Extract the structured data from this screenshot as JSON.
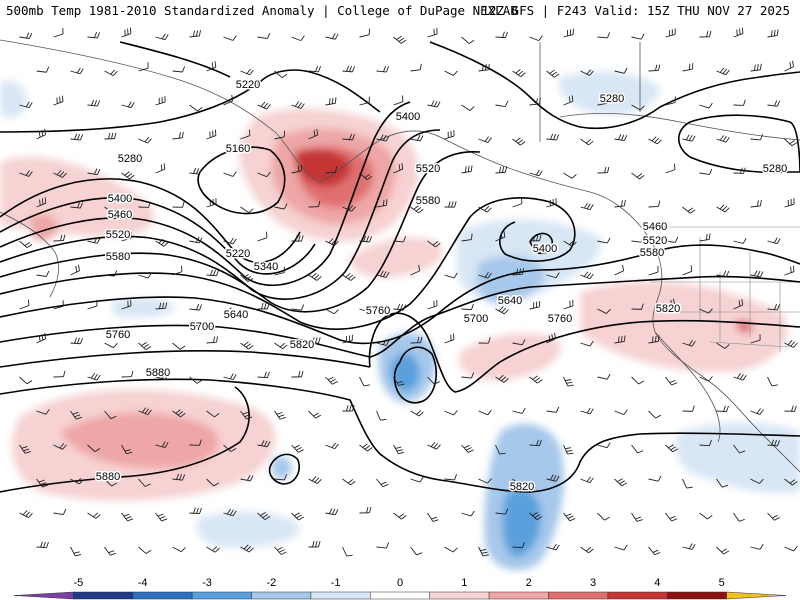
{
  "header": {
    "left_title": "500mb Temp 1981-2010 Standardized Anomaly | College of DuPage NEXLAB",
    "right_title": "12Z GFS | F243 Valid: 15Z THU NOV 27 2025"
  },
  "colors": {
    "contour": "#000000",
    "coast": "#555555",
    "border": "#888888",
    "scale": [
      "#7b3fa7",
      "#1f3b86",
      "#2f6fbf",
      "#5aa0dc",
      "#a6c8ea",
      "#d8e6f5",
      "#ffffff",
      "#f6d2d2",
      "#eea6a6",
      "#e07070",
      "#c63434",
      "#8e1111",
      "#f0c020"
    ]
  },
  "map": {
    "type": "height-contour-anomaly-map",
    "field": "500mb height contours (dam x10) with standardized temperature anomaly shading and wind barbs",
    "contours": [
      {
        "value": "5160",
        "labels": [
          "5160"
        ]
      },
      {
        "value": "5220",
        "labels": [
          "5220",
          "5220"
        ]
      },
      {
        "value": "5280",
        "labels": [
          "5280",
          "5280",
          "5280"
        ]
      },
      {
        "value": "5340",
        "labels": [
          "5340"
        ]
      },
      {
        "value": "5400",
        "labels": [
          "5400",
          "5400",
          "5400"
        ]
      },
      {
        "value": "5460",
        "labels": [
          "5460",
          "5460"
        ]
      },
      {
        "value": "5520",
        "labels": [
          "5520",
          "5520",
          "5520"
        ]
      },
      {
        "value": "5580",
        "labels": [
          "5580",
          "5580",
          "5580"
        ]
      },
      {
        "value": "5640",
        "labels": [
          "5640",
          "5640"
        ]
      },
      {
        "value": "5700",
        "labels": [
          "5700",
          "5700"
        ]
      },
      {
        "value": "5760",
        "labels": [
          "5760",
          "5760",
          "5760"
        ]
      },
      {
        "value": "5820",
        "labels": [
          "5820",
          "5820",
          "5820"
        ]
      },
      {
        "value": "5880",
        "labels": [
          "5880",
          "5880"
        ]
      }
    ],
    "anomaly_regions": [
      {
        "name": "gulf-of-alaska-warm-core",
        "sign": "positive",
        "max": 3
      },
      {
        "name": "west-pacific-warm-band",
        "sign": "positive",
        "max": 2
      },
      {
        "name": "subtropical-warm-area",
        "sign": "positive",
        "max": 2
      },
      {
        "name": "cutoff-low-cold-core",
        "sign": "negative",
        "max": 3
      },
      {
        "name": "pacific-northwest-cold-trough",
        "sign": "negative",
        "max": 2
      },
      {
        "name": "southeast-cold-area",
        "sign": "negative",
        "max": 3
      }
    ]
  },
  "colorbar": {
    "ticks": [
      "-5",
      "-4",
      "-3",
      "-2",
      "-1",
      "0",
      "1",
      "2",
      "3",
      "4",
      "5"
    ],
    "range": [
      -6,
      6
    ]
  }
}
